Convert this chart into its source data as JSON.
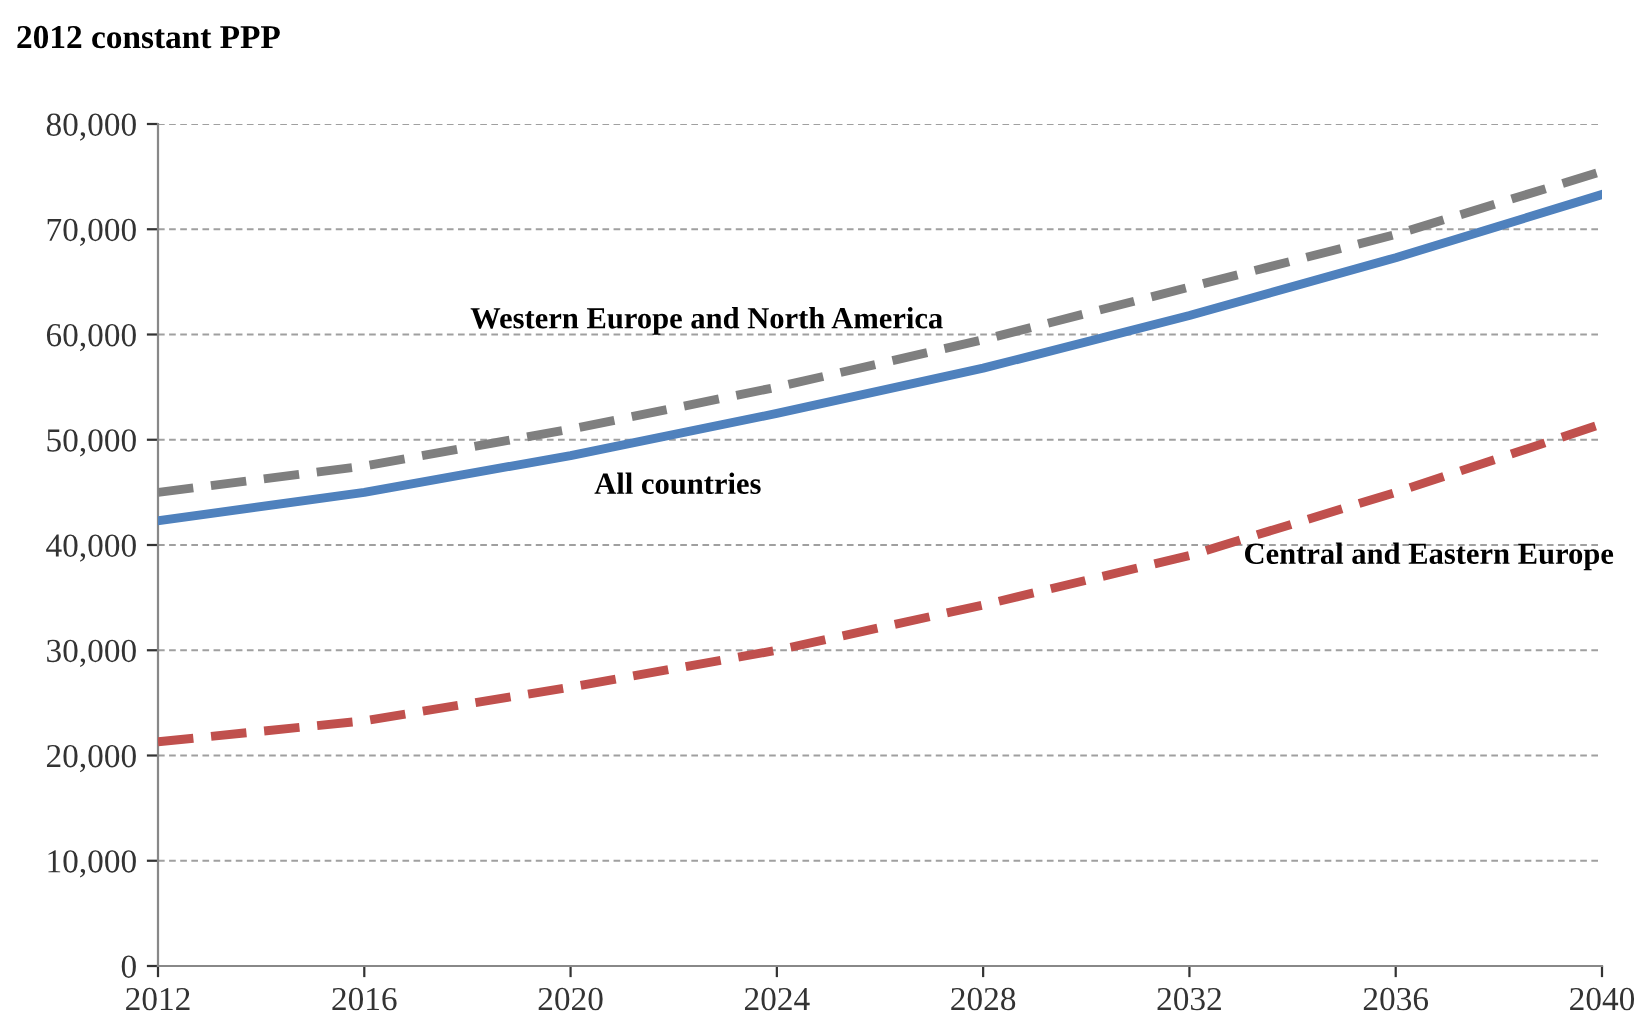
{
  "chart_data": {
    "type": "line",
    "ylabel": "2012 constant PPP",
    "x": [
      2012,
      2016,
      2020,
      2024,
      2028,
      2032,
      2036,
      2040
    ],
    "series": [
      {
        "name": "Western Europe and North America",
        "color": "#7f7f7f",
        "line_style": "dashed",
        "values": [
          45000,
          47500,
          51000,
          55000,
          59500,
          64500,
          69500,
          75500
        ]
      },
      {
        "name": "All countries",
        "color": "#4f81bd",
        "line_style": "solid",
        "values": [
          42300,
          45000,
          48500,
          52500,
          56800,
          61800,
          67300,
          73300
        ]
      },
      {
        "name": "Central and Eastern Europe",
        "color": "#c0504d",
        "line_style": "dashed",
        "values": [
          21300,
          23300,
          26500,
          30000,
          34300,
          39000,
          45000,
          51500
        ]
      }
    ],
    "xlim": [
      2012,
      2040
    ],
    "xticks": [
      2012,
      2016,
      2020,
      2024,
      2028,
      2032,
      2036,
      2040
    ],
    "ylim": [
      0,
      80000
    ],
    "yticks": [
      {
        "value": 0,
        "label": "0"
      },
      {
        "value": 10000,
        "label": "10,000"
      },
      {
        "value": 20000,
        "label": "20,000"
      },
      {
        "value": 30000,
        "label": "30,000"
      },
      {
        "value": 40000,
        "label": "40,000"
      },
      {
        "value": 50000,
        "label": "50,000"
      },
      {
        "value": 60000,
        "label": "60,000"
      },
      {
        "value": 70000,
        "label": "70,000"
      },
      {
        "value": 80000,
        "label": "80,000"
      }
    ],
    "grid": "y",
    "legend": false,
    "marker": "none"
  }
}
